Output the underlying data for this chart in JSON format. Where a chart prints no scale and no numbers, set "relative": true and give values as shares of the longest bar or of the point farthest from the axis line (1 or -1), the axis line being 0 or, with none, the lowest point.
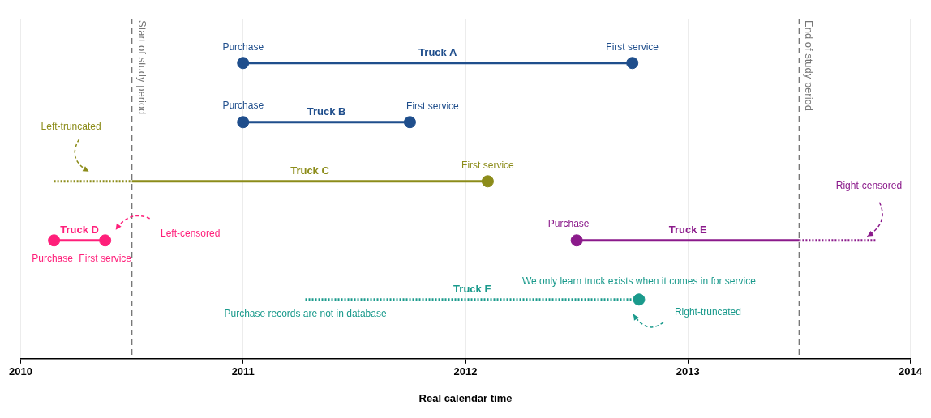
{
  "chart_data": {
    "type": "line",
    "relative": true,
    "xlabel": "Real calendar time",
    "xlim": [
      2010,
      2014
    ],
    "xticks": [
      2010,
      2011,
      2012,
      2013,
      2014
    ],
    "grid": "x",
    "series": [
      {
        "name": "Truck A",
        "color": "#1f4e8c",
        "x": [
          2011,
          2012.75
        ],
        "values": [
          1,
          1
        ]
      },
      {
        "name": "Truck B",
        "color": "#1f4e8c",
        "x": [
          2011,
          2011.75
        ],
        "values": [
          0.8,
          0.8
        ]
      },
      {
        "color": "#8c8c1a",
        "line_style": "dotted",
        "x": [
          2010.15,
          2010.5
        ],
        "values": [
          0.6,
          0.6
        ]
      },
      {
        "name": "Truck C",
        "color": "#8c8c1a",
        "x": [
          2010.5,
          2012.1
        ],
        "values": [
          0.6,
          0.6
        ]
      },
      {
        "name": "Truck D",
        "color": "#ff1f7a",
        "x": [
          2010.15,
          2010.38
        ],
        "values": [
          0.4,
          0.4
        ]
      },
      {
        "name": "Truck E",
        "color": "#8b1a8b",
        "x": [
          2012.5,
          2013.5
        ],
        "values": [
          0.4,
          0.4
        ]
      },
      {
        "color": "#8b1a8b",
        "line_style": "dotted",
        "x": [
          2013.5,
          2013.85
        ],
        "values": [
          0.4,
          0.4
        ]
      },
      {
        "name": "Truck F",
        "color": "#1a9a8c",
        "line_style": "dotted",
        "x": [
          2011.28,
          2012.78
        ],
        "values": [
          0.2,
          0.2
        ]
      },
      {
        "type": "scatter",
        "marker": "circle",
        "x": [
          2011,
          2012.75,
          2011,
          2011.75,
          2012.1,
          2010.15,
          2010.38,
          2012.5,
          2012.78
        ],
        "values": [
          1,
          1,
          0.8,
          0.8,
          0.6,
          0.4,
          0.4,
          0.4,
          0.2
        ],
        "colors": [
          "#1f4e8c",
          "#1f4e8c",
          "#1f4e8c",
          "#1f4e8c",
          "#8c8c1a",
          "#ff1f7a",
          "#ff1f7a",
          "#8b1a8b",
          "#1a9a8c"
        ]
      }
    ],
    "ref_lines": [
      {
        "axis": "x",
        "value": 2010.5,
        "label": "Start of study period",
        "color": "#777777",
        "line_style": "dashed"
      },
      {
        "axis": "x",
        "value": 2013.5,
        "label": "End of study period",
        "color": "#777777",
        "line_style": "dashed"
      }
    ],
    "annotations": [
      {
        "text": "Purchase",
        "x": 2011,
        "y": 1
      },
      {
        "text": "First service",
        "x": 2012.75,
        "y": 1
      },
      {
        "text": "Purchase",
        "x": 2011,
        "y": 0.8
      },
      {
        "text": "First service",
        "x": 2011.75,
        "y": 0.8
      },
      "Left-truncated",
      {
        "text": "First service",
        "x": 2012.1,
        "y": 0.6
      },
      "Left-censored",
      {
        "text": "Purchase",
        "x": 2010.15,
        "y": 0.4
      },
      {
        "text": "First service",
        "x": 2010.38,
        "y": 0.4
      },
      {
        "text": "Purchase",
        "x": 2012.5,
        "y": 0.4
      },
      "Right-censored",
      {
        "text": "We only learn truck exists when it comes in for service",
        "x": 2012.78,
        "y": 0.2
      },
      {
        "text": "Purchase records are not in database",
        "x": 2011.28,
        "y": 0.2
      },
      "Right-truncated"
    ]
  }
}
